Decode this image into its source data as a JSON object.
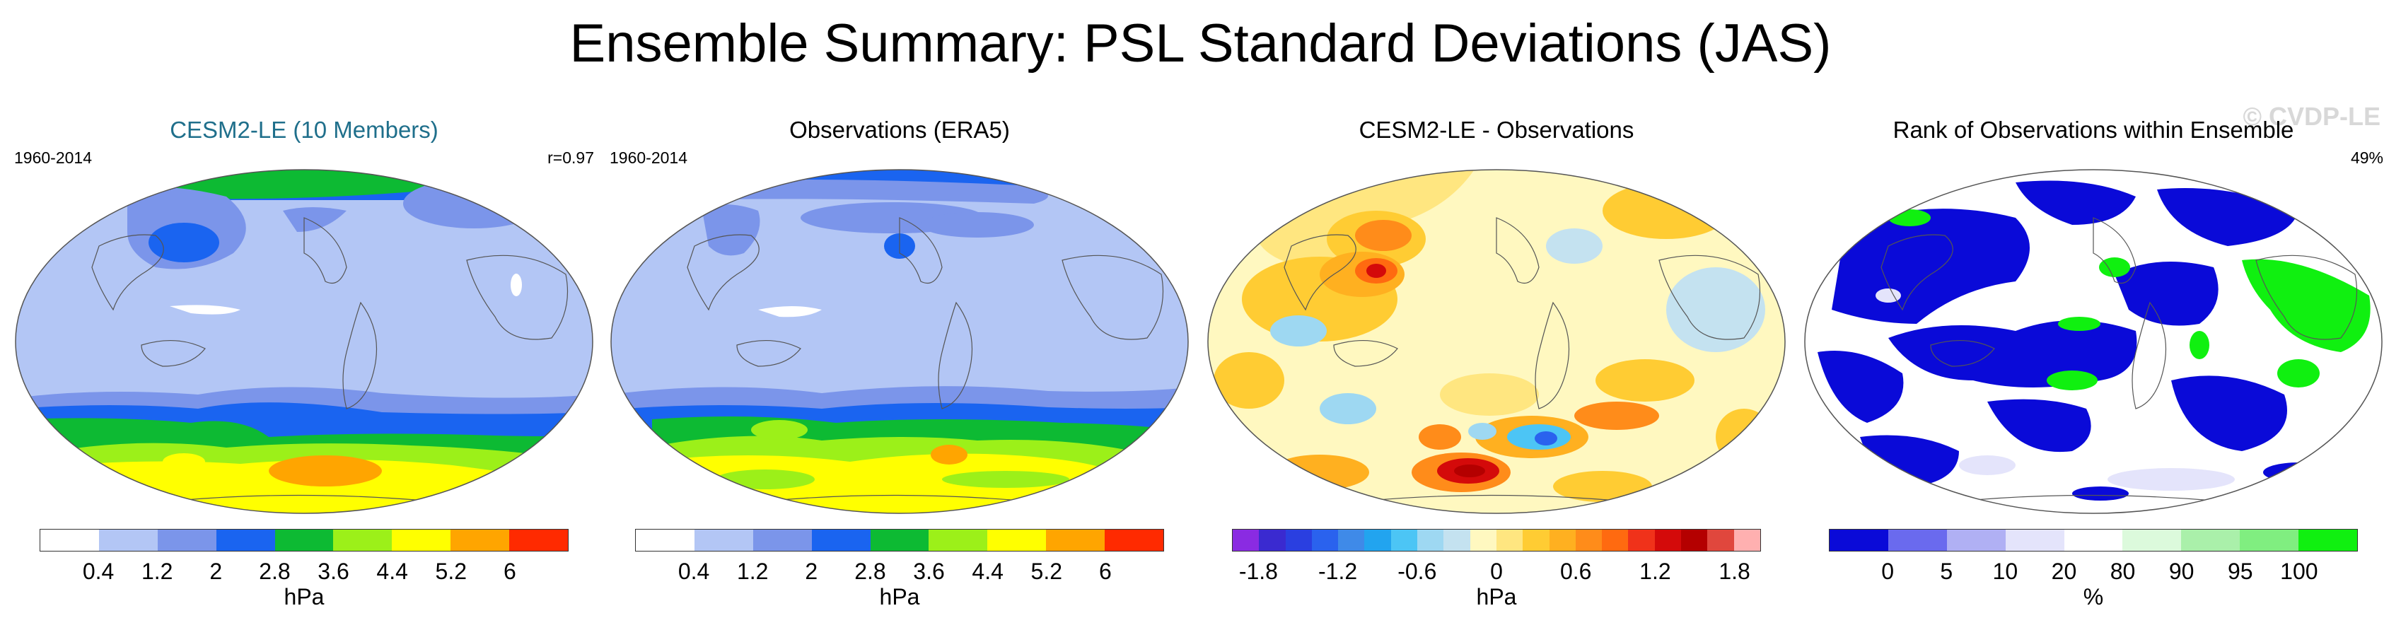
{
  "title": "Ensemble Summary: PSL Standard Deviations (JAS)",
  "watermark": "© CVDP-LE",
  "panels": [
    {
      "title": "CESM2-LE (10 Members)",
      "left_label": "1960-2014",
      "right_label": "r=0.97",
      "unit": "hPa",
      "colors": [
        "#ffffff",
        "#b3c6f5",
        "#7b95ea",
        "#1a64f0",
        "#0dba33",
        "#9cf019",
        "#ffff00",
        "#ffa500",
        "#ff2a00"
      ],
      "ticks": [
        "0.4",
        "1.2",
        "2",
        "2.8",
        "3.6",
        "4.4",
        "5.2",
        "6"
      ]
    },
    {
      "title": "Observations (ERA5)",
      "left_label": "1960-2014",
      "right_label": "",
      "unit": "hPa",
      "colors": [
        "#ffffff",
        "#b3c6f5",
        "#7b95ea",
        "#1a64f0",
        "#0dba33",
        "#9cf019",
        "#ffff00",
        "#ffa500",
        "#ff2a00"
      ],
      "ticks": [
        "0.4",
        "1.2",
        "2",
        "2.8",
        "3.6",
        "4.4",
        "5.2",
        "6"
      ]
    },
    {
      "title": "CESM2-LE - Observations",
      "left_label": "",
      "right_label": "",
      "unit": "hPa",
      "colors": [
        "#8a2be2",
        "#3a2ad0",
        "#2a3fe0",
        "#2a62ee",
        "#3f8ae8",
        "#22a4ef",
        "#4cc5f5",
        "#9ed8f2",
        "#c4e2f0",
        "#fff8c0",
        "#ffe680",
        "#ffcc33",
        "#ffb020",
        "#ff8c1a",
        "#ff6a10",
        "#f0321a",
        "#d40a0a",
        "#b40000",
        "#e0473d",
        "#ffb0b0"
      ],
      "ticks": [
        "-1.8",
        "-1.2",
        "-0.6",
        "0",
        "0.6",
        "1.2",
        "1.8"
      ]
    },
    {
      "title": "Rank of Observations within Ensemble",
      "left_label": "",
      "right_label": "49%",
      "unit": "%",
      "colors": [
        "#0a0ad8",
        "#6a6aee",
        "#b0b0f4",
        "#e4e4fb",
        "#ffffff",
        "#dcfadc",
        "#aaf0aa",
        "#80ee80",
        "#10f010"
      ],
      "ticks": [
        "0",
        "5",
        "10",
        "20",
        "80",
        "90",
        "95",
        "100"
      ]
    }
  ]
}
